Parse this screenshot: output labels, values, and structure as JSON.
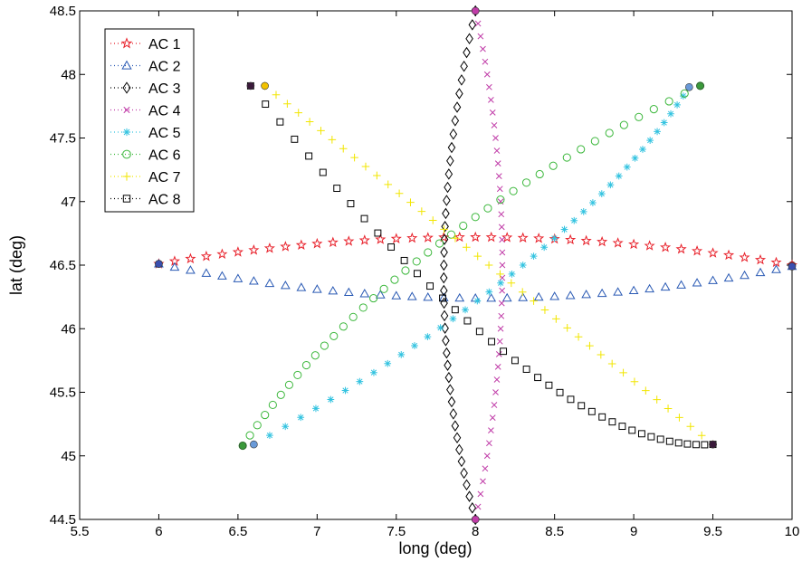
{
  "chart_data": {
    "type": "scatter",
    "xlabel": "long (deg)",
    "ylabel": "lat (deg)",
    "xlim": [
      5.5,
      10
    ],
    "ylim": [
      44.5,
      48.5
    ],
    "xticks": [
      "5.5",
      "6",
      "6.5",
      "7",
      "7.5",
      "8",
      "8.5",
      "9",
      "9.5",
      "10"
    ],
    "yticks": [
      "44.5",
      "45",
      "45.5",
      "46",
      "46.5",
      "47",
      "47.5",
      "48",
      "48.5"
    ],
    "grid": false,
    "legend_position": "top-left",
    "series": [
      {
        "name": "AC 1",
        "marker": "star",
        "color": "#e8202a",
        "line_style": "dotted",
        "start": [
          10.0,
          46.5
        ],
        "via": [
          8.0,
          46.72
        ],
        "end": [
          6.0,
          46.51
        ],
        "endpoint_color": "#e8202a",
        "num_points": 41
      },
      {
        "name": "AC 2",
        "marker": "triangle",
        "color": "#2a5ab4",
        "line_style": "dotted",
        "start": [
          6.0,
          46.51
        ],
        "via": [
          8.0,
          46.24
        ],
        "end": [
          10.0,
          46.49
        ],
        "endpoint_color": "#3b4fb0",
        "num_points": 41
      },
      {
        "name": "AC 3",
        "marker": "diamond",
        "color": "#000000",
        "line_style": "dotted",
        "start": [
          8.0,
          48.5
        ],
        "via": [
          7.8,
          46.4
        ],
        "end": [
          8.0,
          44.5
        ],
        "endpoint_color": "#4a1a5a",
        "num_points": 41
      },
      {
        "name": "AC 4",
        "marker": "x",
        "color": "#c03ca8",
        "line_style": "dotted",
        "start": [
          8.0,
          48.5
        ],
        "via": [
          8.17,
          46.5
        ],
        "end": [
          8.0,
          44.5
        ],
        "endpoint_color": "#c03ca8",
        "num_points": 41
      },
      {
        "name": "AC 5",
        "marker": "asterisk",
        "color": "#33c3e0",
        "line_style": "dotted",
        "start": [
          6.6,
          45.09
        ],
        "via": [
          8.3,
          46.5
        ],
        "end": [
          9.35,
          47.9
        ],
        "endpoint_color": "#6a9ad8",
        "num_points": 41
      },
      {
        "name": "AC 6",
        "marker": "circle",
        "color": "#3db83d",
        "line_style": "dotted",
        "start": [
          6.53,
          45.08
        ],
        "via": [
          7.7,
          46.6
        ],
        "end": [
          9.42,
          47.91
        ],
        "endpoint_color": "#3a9a3a",
        "num_points": 41
      },
      {
        "name": "AC 7",
        "marker": "plus",
        "color": "#f2e600",
        "line_style": "dotted",
        "start": [
          6.67,
          47.91
        ],
        "end": [
          9.5,
          45.09
        ],
        "endpoint_color": "#f2c200",
        "num_points": 41
      },
      {
        "name": "AC 8",
        "marker": "square",
        "color": "#000000",
        "line_style": "dotted",
        "start": [
          6.58,
          47.91
        ],
        "via": [
          8.25,
          45.75
        ],
        "end": [
          9.5,
          45.09
        ],
        "endpoint_color": "#3a1a3a",
        "num_points": 41
      }
    ]
  }
}
